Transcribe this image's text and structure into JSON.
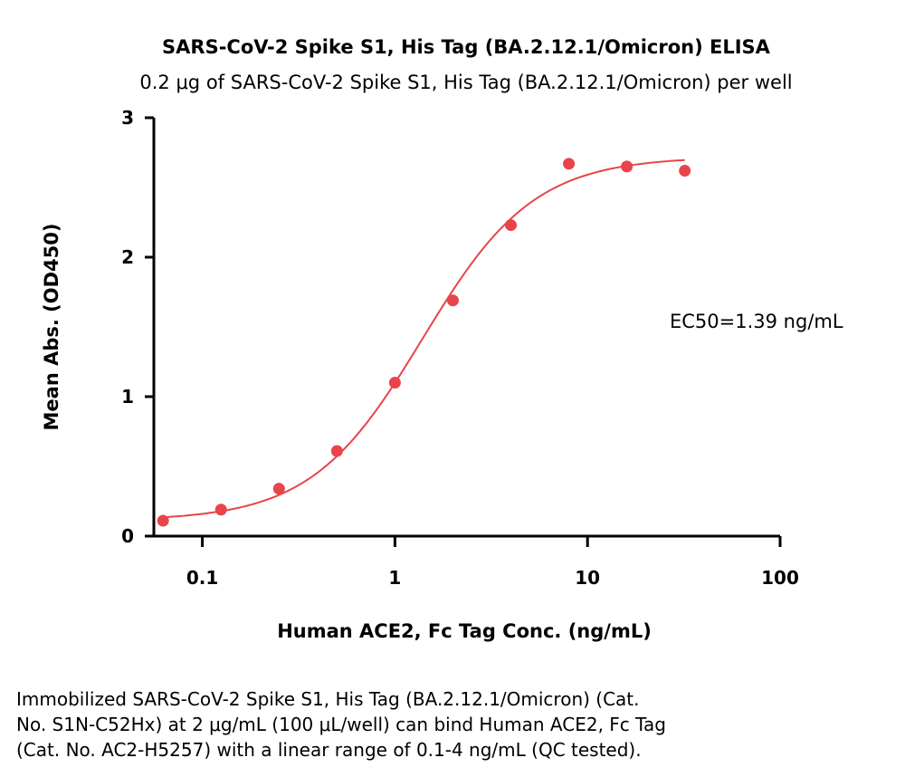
{
  "chart_data": {
    "type": "scatter",
    "title": "SARS-CoV-2 Spike S1, His Tag (BA.2.12.1/Omicron) ELISA",
    "subtitle": "0.2 μg of SARS-CoV-2 Spike S1, His Tag (BA.2.12.1/Omicron) per well",
    "xlabel": "Human ACE2, Fc Tag Conc. (ng/mL)",
    "ylabel": "Mean Abs. (OD450)",
    "x_scale": "log",
    "xlim": [
      0.056,
      100
    ],
    "ylim": [
      0,
      3
    ],
    "x_ticks": [
      0.1,
      1,
      10,
      100
    ],
    "x_tick_labels": [
      "0.1",
      "1",
      "10",
      "100"
    ],
    "y_ticks": [
      0,
      1,
      2,
      3
    ],
    "y_tick_labels": [
      "0",
      "1",
      "2",
      "3"
    ],
    "grid": false,
    "legend": "none",
    "color": "#e8444a",
    "x": [
      0.0625,
      0.125,
      0.25,
      0.5,
      1,
      2,
      4,
      8,
      16,
      32
    ],
    "y": [
      0.11,
      0.19,
      0.34,
      0.61,
      1.1,
      1.69,
      2.23,
      2.67,
      2.65,
      2.62
    ],
    "fit": {
      "model": "4PL",
      "bottom": 0.11,
      "top": 2.72,
      "ec50": 1.39,
      "hill": 1.5
    },
    "annotation": "EC50=1.39 ng/mL"
  },
  "caption": {
    "lines": [
      "Immobilized SARS-CoV-2 Spike S1, His Tag (BA.2.12.1/Omicron) (Cat.",
      "No. S1N-C52Hx) at 2 μg/mL (100 μL/well) can bind Human ACE2, Fc Tag",
      "(Cat. No. AC2-H5257) with a linear range of 0.1-4 ng/mL (QC tested)."
    ]
  }
}
